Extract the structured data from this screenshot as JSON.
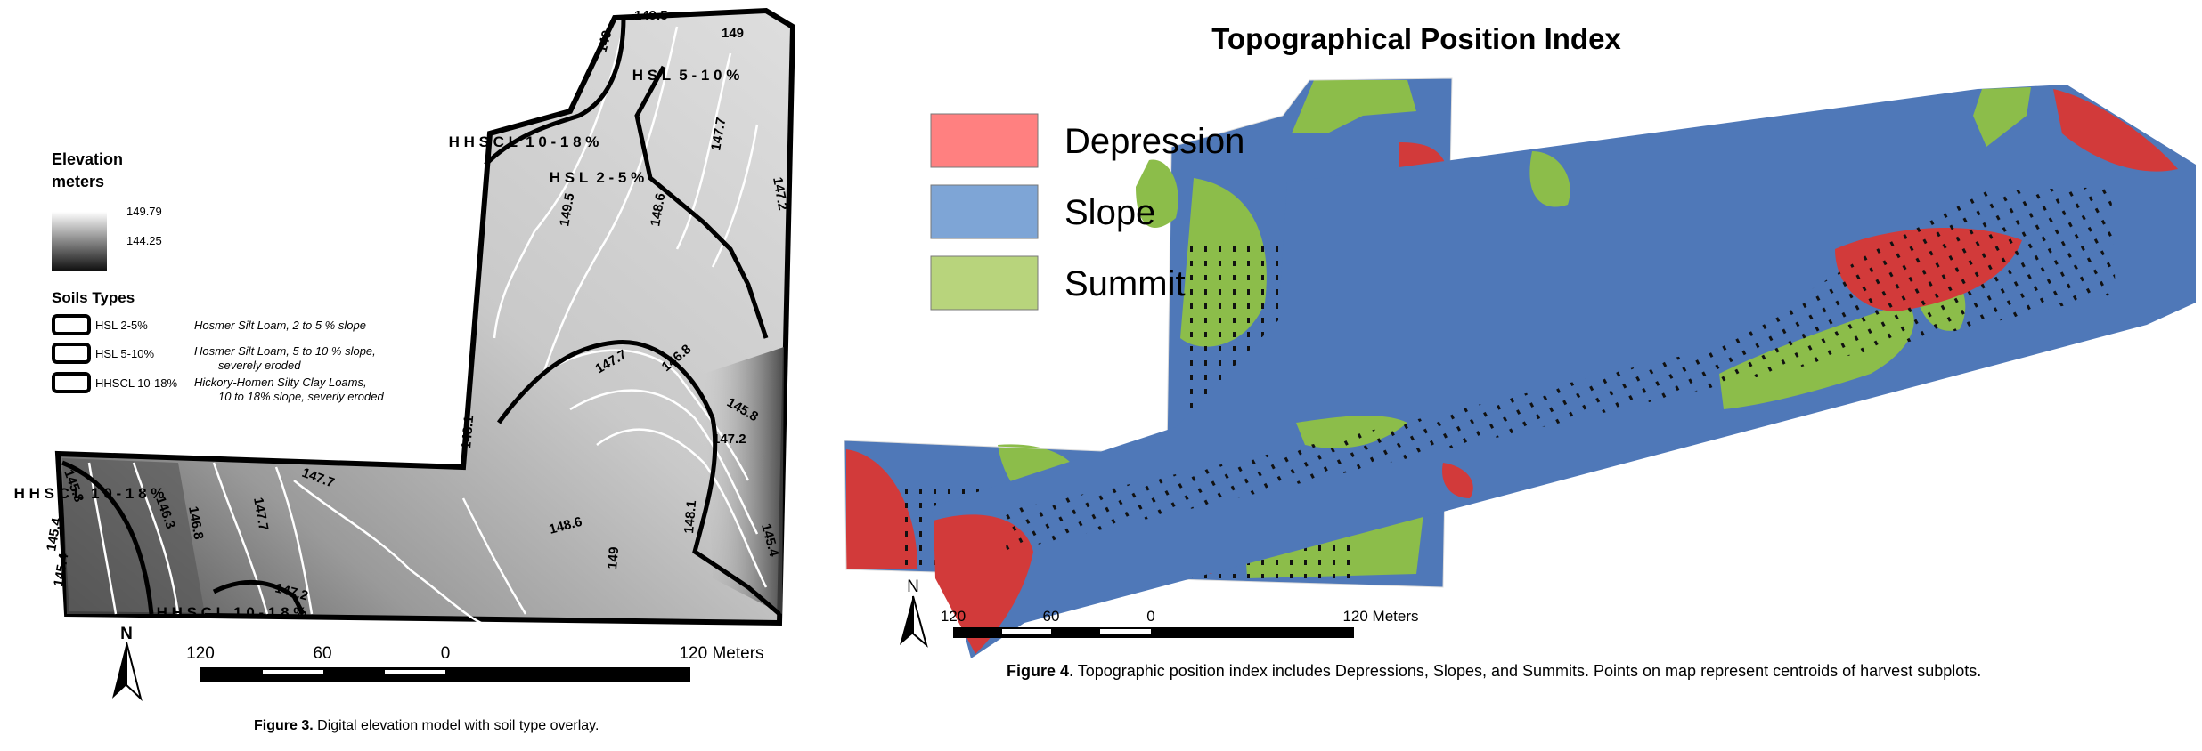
{
  "figure3": {
    "legend": {
      "elevation_title_line1": "Elevation",
      "elevation_title_line2": "meters",
      "elevation_max": "149.79",
      "elevation_min": "144.25",
      "soils_title": "Soils Types",
      "soils": [
        {
          "code": "HSL 2-5%",
          "desc_line1": "Hosmer Silt Loam, 2 to 5 % slope",
          "desc_line2": ""
        },
        {
          "code": "HSL 5-10%",
          "desc_line1": "Hosmer Silt Loam, 5 to 10 % slope,",
          "desc_line2": "severely eroded"
        },
        {
          "code": "HHSCL 10-18%",
          "desc_line1": "Hickory-Homen Silty Clay Loams,",
          "desc_line2": "10 to 18% slope, severly eroded"
        }
      ]
    },
    "map_labels": {
      "hsl_5_10": "H S L  5 - 1 0 %",
      "hhscl_top": "H H S C L  1 0 - 1 8 %",
      "hsl_2_5": "H S L  2 - 5 %",
      "hhscl_left": "H H S C L  1 0 - 1 8 %",
      "hhscl_bottom": "H H S C L  1 0 - 1 8 %"
    },
    "contour_labels": [
      "149.5",
      "149",
      "149",
      "147.7",
      "147.2",
      "149.5",
      "148.6",
      "147.7",
      "146.8",
      "145.8",
      "147.2",
      "148.1",
      "147.7",
      "145.8",
      "146.3",
      "146.8",
      "147.7",
      "145.4",
      "145.4",
      "147.2",
      "148.6",
      "149",
      "148.1",
      "145.4"
    ],
    "scale": {
      "t0": "120",
      "t1": "60",
      "t2": "0",
      "t3": "120 Meters"
    },
    "north": "N",
    "caption_bold": "Figure 3.",
    "caption_rest": " Digital elevation model with soil type overlay."
  },
  "figure4": {
    "title": "Topographical Position Index",
    "legend": [
      {
        "label": "Depression",
        "color": "#ff8080"
      },
      {
        "label": "Slope",
        "color": "#7ea5d6"
      },
      {
        "label": "Summit",
        "color": "#b8d47c"
      }
    ],
    "scale": {
      "t0": "120",
      "t1": "60",
      "t2": "0",
      "t3": "120 Meters"
    },
    "north": "N",
    "caption_bold": "Figure 4",
    "caption_rest": ". Topographic position index includes Depressions, Slopes, and Summits. Points on map represent centroids of harvest subplots."
  },
  "colors": {
    "depression_map": "#d23a3a",
    "slope_map": "#4f78b8",
    "summit_map": "#8cbd4a",
    "dem_light": "#e2e2e2",
    "dem_dark": "#3a3a3a"
  }
}
